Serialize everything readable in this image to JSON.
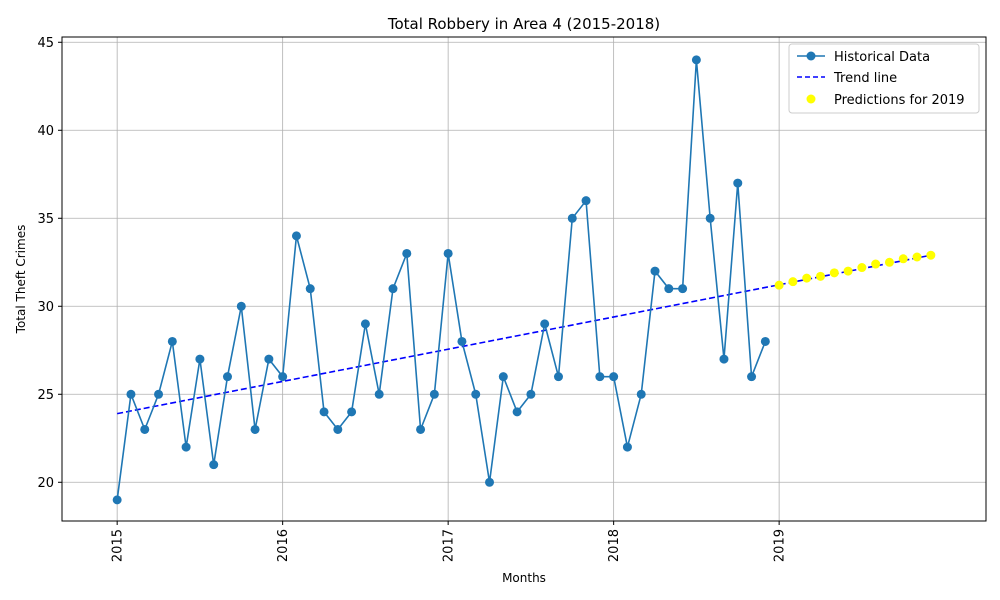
{
  "chart_data": {
    "type": "line",
    "title": "Total Robbery in Area 4 (2015-2018)",
    "xlabel": "Months",
    "ylabel": "Total Theft Crimes",
    "x_ticks": [
      "2015",
      "2016",
      "2017",
      "2018",
      "2019"
    ],
    "y_ticks": [
      20,
      25,
      30,
      35,
      40,
      45
    ],
    "ylim": [
      17.8,
      45.3
    ],
    "xlim": [
      "2014-09",
      "2020-04"
    ],
    "grid": true,
    "legend_position": "top-right",
    "series": [
      {
        "name": "Historical Data",
        "kind": "line-marker",
        "color": "#1f77b4",
        "start": "2015-01",
        "values": [
          19,
          25,
          23,
          25,
          28,
          22,
          27,
          21,
          26,
          30,
          23,
          27,
          26,
          34,
          31,
          24,
          23,
          24,
          29,
          25,
          31,
          33,
          23,
          25,
          33,
          28,
          25,
          20,
          26,
          24,
          25,
          29,
          26,
          35,
          36,
          26,
          26,
          22,
          25,
          32,
          31,
          31,
          44,
          35,
          27,
          37,
          26,
          28
        ]
      },
      {
        "name": "Trend line",
        "kind": "dashed-line",
        "color": "#0000ff",
        "x": [
          "2015-01",
          "2019-12"
        ],
        "values": [
          23.9,
          32.9
        ]
      },
      {
        "name": "Predictions for 2019",
        "kind": "scatter",
        "color": "#ffff00",
        "start": "2019-01",
        "values": [
          31.2,
          31.4,
          31.6,
          31.7,
          31.9,
          32.0,
          32.2,
          32.4,
          32.5,
          32.7,
          32.8,
          32.9
        ]
      }
    ]
  }
}
